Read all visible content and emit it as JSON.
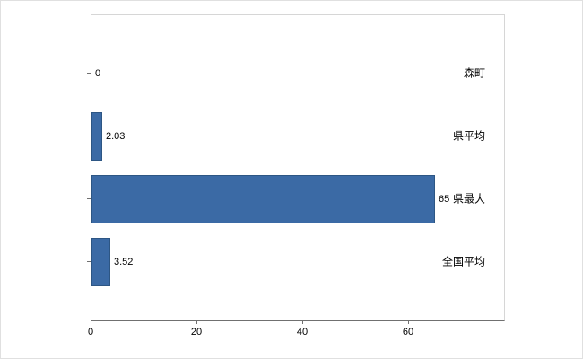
{
  "chart_data": {
    "type": "bar",
    "orientation": "horizontal",
    "title": "",
    "xlabel": "",
    "ylabel": "",
    "categories": [
      "森町",
      "県平均",
      "県最大",
      "全国平均"
    ],
    "values": [
      0,
      2.03,
      65,
      3.52
    ],
    "value_labels": [
      "0",
      "2.03",
      "65",
      "3.52"
    ],
    "x_ticks": [
      0,
      20,
      40,
      60
    ],
    "xlim": [
      0,
      78
    ],
    "grid": false,
    "legend": false,
    "bar_color": "#3b6aa5",
    "bar_border_color": "#2d5684",
    "axis_color": "#707070",
    "plot_border_color": "#d6d6d6",
    "background_color": "#ffffff"
  }
}
